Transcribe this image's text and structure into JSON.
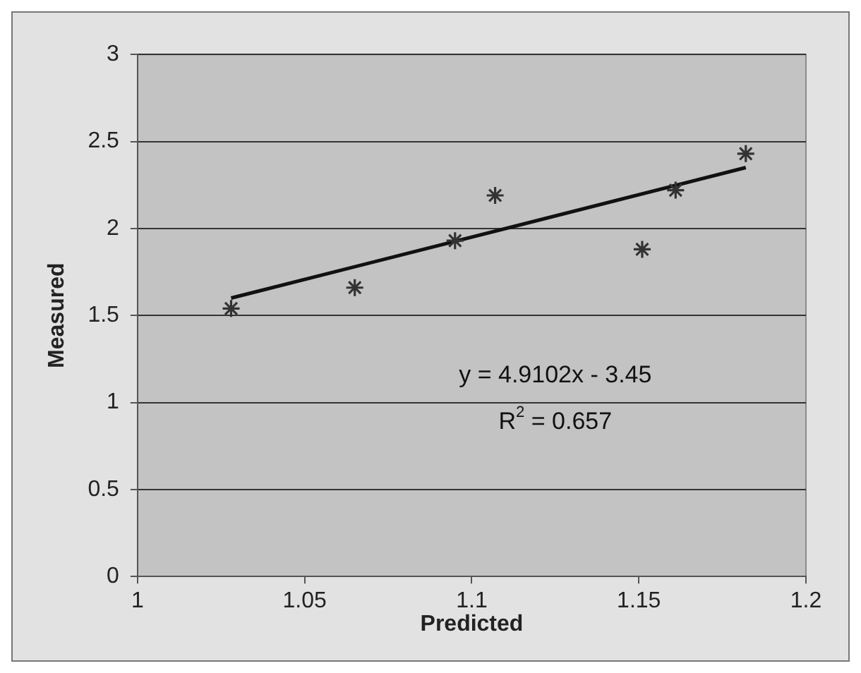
{
  "chart_data": {
    "type": "scatter",
    "xlabel": "Predicted",
    "ylabel": "Measured",
    "xlim": [
      1,
      1.2
    ],
    "xticks": [
      1,
      1.05,
      1.1,
      1.15,
      1.2
    ],
    "ylim": [
      0,
      3
    ],
    "yticks": [
      0,
      0.5,
      1,
      1.5,
      2,
      2.5,
      3
    ],
    "grid": "y",
    "legend": false,
    "marker": "cross",
    "series": [
      {
        "color": "#333333",
        "x": [
          1.028,
          1.065,
          1.095,
          1.107,
          1.151,
          1.161,
          1.182
        ],
        "values": [
          1.54,
          1.66,
          1.93,
          2.19,
          1.88,
          2.22,
          2.43
        ]
      },
      {
        "type": "line",
        "color": "#111111",
        "x": [
          1.028,
          1.182
        ],
        "values": [
          1.6,
          2.35
        ],
        "marker": "none"
      }
    ],
    "annotations": [
      "y = 4.9102x - 3.45",
      "R$^{2}$ = 0.657"
    ]
  }
}
